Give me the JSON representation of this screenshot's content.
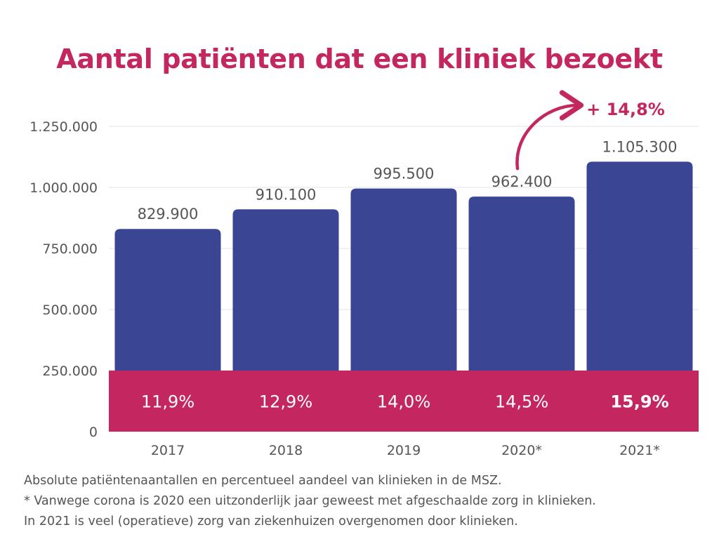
{
  "colors": {
    "title": "#c4265f",
    "bar": "#3a4694",
    "band": "#c4265f",
    "grid": "#e3e3e3",
    "text": "#555555"
  },
  "chart_data": {
    "type": "bar",
    "title": "Aantal patiënten dat een kliniek bezoekt",
    "categories": [
      "2017",
      "2018",
      "2019",
      "2020*",
      "2021*"
    ],
    "values": [
      829900,
      910100,
      995500,
      962400,
      1105300
    ],
    "value_labels": [
      "829.900",
      "910.100",
      "995.500",
      "962.400",
      "1.105.300"
    ],
    "share_labels": [
      "11,9%",
      "12,9%",
      "14,0%",
      "14,5%",
      "15,9%"
    ],
    "share_band_value": 250000,
    "y_ticks": [
      0,
      250000,
      500000,
      750000,
      1000000,
      1250000
    ],
    "y_tick_labels": [
      "0",
      "250.000",
      "500.000",
      "750.000",
      "1.000.000",
      "1.250.000"
    ],
    "ylim": [
      0,
      1250000
    ],
    "grid": true,
    "annotation": {
      "text": "+ 14,8%",
      "from": "2020*",
      "to": "2021*"
    },
    "notes": [
      "Absolute patiëntenaantallen en percentueel aandeel van klinieken in de MSZ.",
      "* Vanwege corona is 2020 een uitzonderlijk jaar geweest met afgeschaalde zorg in klinieken.",
      "In 2021 is veel (operatieve) zorg van ziekenhuizen overgenomen door klinieken."
    ]
  }
}
